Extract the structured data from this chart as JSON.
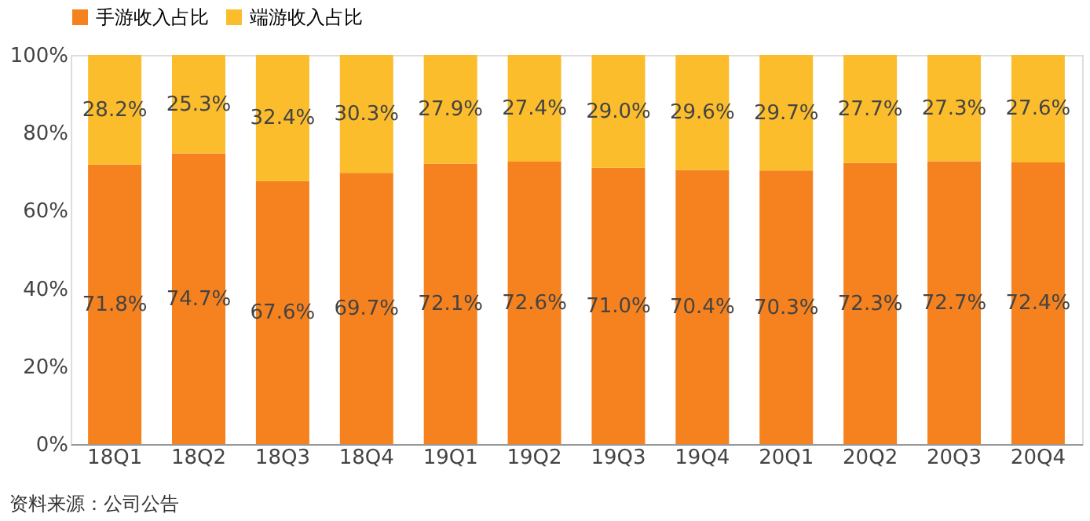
{
  "chart_data": {
    "type": "bar",
    "stacked": true,
    "categories": [
      "18Q1",
      "18Q2",
      "18Q3",
      "18Q4",
      "19Q1",
      "19Q2",
      "19Q3",
      "19Q4",
      "20Q1",
      "20Q2",
      "20Q3",
      "20Q4"
    ],
    "series": [
      {
        "name": "手游收入占比",
        "color": "#f5821f",
        "values": [
          71.8,
          74.7,
          67.6,
          69.7,
          72.1,
          72.6,
          71.0,
          70.4,
          70.3,
          72.3,
          72.7,
          72.4
        ],
        "value_labels": [
          "71.8%",
          "74.7%",
          "67.6%",
          "69.7%",
          "72.1%",
          "72.6%",
          "71.0%",
          "70.4%",
          "70.3%",
          "72.3%",
          "72.7%",
          "72.4%"
        ]
      },
      {
        "name": "端游收入占比",
        "color": "#fbbd2c",
        "values": [
          28.2,
          25.3,
          32.4,
          30.3,
          27.9,
          27.4,
          29.0,
          29.6,
          29.7,
          27.7,
          27.3,
          27.6
        ],
        "value_labels": [
          "28.2%",
          "25.3%",
          "32.4%",
          "30.3%",
          "27.9%",
          "27.4%",
          "29.0%",
          "29.6%",
          "29.7%",
          "27.7%",
          "27.3%",
          "27.6%"
        ]
      }
    ],
    "ylim": [
      0,
      100
    ],
    "yticks": [
      {
        "value": 0,
        "label": "0%"
      },
      {
        "value": 20,
        "label": "20%"
      },
      {
        "value": 40,
        "label": "40%"
      },
      {
        "value": 60,
        "label": "60%"
      },
      {
        "value": 80,
        "label": "80%"
      },
      {
        "value": 100,
        "label": "100%"
      }
    ],
    "grid": false,
    "legend": "top",
    "annotations": [
      "资料来源：公司公告"
    ]
  }
}
